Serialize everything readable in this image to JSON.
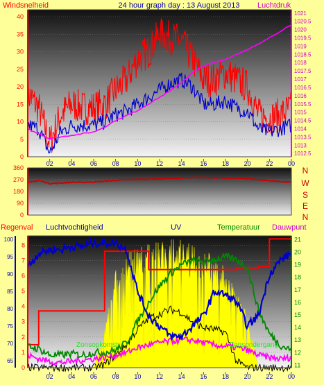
{
  "title": "24 hour graph day : 13 August 2013",
  "top": {
    "left_label": "Windsnelheid",
    "right_label": "Luchtdruk",
    "y_left_ticks": [
      "0",
      "5",
      "10",
      "15",
      "20",
      "25",
      "30",
      "35",
      "40"
    ],
    "y_right_ticks": [
      "1012.5",
      "1013",
      "1013.5",
      "1014",
      "1014.5",
      "1015",
      "1015.5",
      "1016",
      "1016.5",
      "1017",
      "1017.5",
      "1018",
      "1018.5",
      "1019",
      "1019.5",
      "1020",
      "1020.5",
      "1021"
    ]
  },
  "mid": {
    "y_ticks": [
      "0",
      "90",
      "180",
      "270",
      "360"
    ],
    "compass": [
      "N",
      "W",
      "S",
      "E",
      "N"
    ]
  },
  "bottom": {
    "labels": [
      "Regenval",
      "Luchtvochtigheid",
      "UV",
      "Temperatuur",
      "Dauwpunt"
    ],
    "y_left_ticks": [
      "65",
      "70",
      "75",
      "80",
      "85",
      "90",
      "95",
      "100"
    ],
    "y_uv_ticks": [
      "0",
      "1",
      "2",
      "3",
      "4",
      "5",
      "6",
      "7",
      "8"
    ],
    "y_right_ticks": [
      "11",
      "12",
      "13",
      "14",
      "15",
      "16",
      "17",
      "18",
      "19",
      "20",
      "21"
    ],
    "sunrise_label": "Zonsopkomst",
    "sunset_label": "Zonsondergang"
  },
  "x_ticks": [
    "02",
    "04",
    "06",
    "08",
    "10",
    "12",
    "14",
    "16",
    "18",
    "20",
    "22",
    "00"
  ],
  "colors": {
    "background": "#ffff99",
    "wind_gust": "#ff0000",
    "wind_avg": "#0000cc",
    "pressure": "#ff00ff",
    "direction": "#cc0000",
    "humidity": "#0000cc",
    "uv": "#ffff00",
    "temperature": "#008800",
    "dewpoint": "#ff00ff",
    "rain": "#ff0000",
    "solar": "#000000",
    "label_red": "#ff0000",
    "label_blue": "#0000aa",
    "label_green": "#008800",
    "label_purple": "#cc00cc"
  },
  "chart_data": [
    {
      "type": "line",
      "title": "24 hour graph day : 13 August 2013",
      "xlabel": "",
      "ylabel": "Windsnelheid",
      "ylim": [
        0,
        42
      ],
      "y2label": "Luchtdruk",
      "y2lim": [
        1012.3,
        1021.2
      ],
      "x_hours": [
        0,
        1,
        2,
        3,
        4,
        5,
        6,
        7,
        8,
        9,
        10,
        11,
        12,
        13,
        14,
        15,
        16,
        17,
        18,
        19,
        20,
        21,
        22,
        23,
        24
      ],
      "series": [
        {
          "name": "Windsnelheid",
          "role": "gust",
          "values": [
            18,
            14,
            4,
            12,
            15,
            14,
            14,
            15,
            19,
            22,
            28,
            30,
            35,
            34,
            33,
            28,
            22,
            22,
            24,
            22,
            20,
            12,
            11,
            12,
            14
          ]
        },
        {
          "name": "",
          "role": "average",
          "values": [
            9,
            8,
            1,
            7,
            9,
            9,
            9,
            10,
            12,
            13,
            15,
            17,
            19,
            21,
            22,
            20,
            15,
            15,
            16,
            14,
            13,
            8,
            7,
            8,
            9
          ]
        },
        {
          "name": "Luchtdruk",
          "axis": "right",
          "values": [
            1014.0,
            1013.7,
            1013.4,
            1013.5,
            1013.6,
            1013.7,
            1013.8,
            1014.1,
            1014.5,
            1014.8,
            1015.1,
            1015.5,
            1015.9,
            1016.3,
            1016.8,
            1017.4,
            1017.8,
            1018.0,
            1018.2,
            1018.5,
            1018.8,
            1019.1,
            1019.5,
            1019.9,
            1020.3
          ]
        }
      ]
    },
    {
      "type": "line",
      "title": "",
      "ylabel": "",
      "ylim": [
        0,
        360
      ],
      "x_hours": [
        0,
        1,
        2,
        3,
        4,
        5,
        6,
        7,
        8,
        9,
        10,
        11,
        12,
        13,
        14,
        15,
        16,
        17,
        18,
        19,
        20,
        21,
        22,
        23,
        24
      ],
      "series": [
        {
          "name": "",
          "values": [
            245,
            265,
            240,
            245,
            250,
            250,
            252,
            258,
            265,
            270,
            272,
            275,
            275,
            278,
            282,
            285,
            288,
            285,
            282,
            280,
            278,
            270,
            262,
            255,
            250
          ]
        }
      ]
    },
    {
      "type": "line",
      "title": "",
      "x_hours": [
        0,
        1,
        2,
        3,
        4,
        5,
        6,
        7,
        8,
        9,
        10,
        11,
        12,
        13,
        14,
        15,
        16,
        17,
        18,
        19,
        20,
        21,
        22,
        23,
        24
      ],
      "series": [
        {
          "name": "Luchtvochtigheid",
          "axis": "left",
          "ylim": [
            63,
            101
          ],
          "values": [
            92,
            96,
            97,
            97,
            98,
            98,
            99,
            99,
            99,
            97,
            85,
            78,
            75,
            72,
            72,
            75,
            78,
            85,
            84,
            82,
            75,
            78,
            90,
            94,
            96
          ]
        },
        {
          "name": "UV",
          "axis": "uv",
          "ylim": [
            0,
            8.6
          ],
          "values": [
            0,
            0,
            0,
            0,
            0,
            0,
            0,
            2.5,
            6.5,
            7.5,
            7.8,
            8.2,
            8.4,
            8.5,
            8.4,
            8.2,
            7.8,
            7.2,
            6.5,
            5.5,
            3.5,
            0,
            0,
            0,
            0
          ]
        },
        {
          "name": "Temperatuur",
          "axis": "right",
          "ylim": [
            10.8,
            21.3
          ],
          "values": [
            12.5,
            12.3,
            11.8,
            11.8,
            11.9,
            11.8,
            12.0,
            12.0,
            12.2,
            12.8,
            14.5,
            16.0,
            17.3,
            18.3,
            19.0,
            19.3,
            19.2,
            19.4,
            19.6,
            19.4,
            18.8,
            15.4,
            13.5,
            12.6,
            12.2
          ]
        },
        {
          "name": "Dauwpunt",
          "axis": "right",
          "ylim": [
            10.8,
            21.3
          ],
          "values": [
            11.8,
            11.5,
            11.3,
            11.2,
            11.3,
            11.4,
            11.5,
            11.6,
            11.8,
            12.0,
            12.4,
            12.6,
            12.8,
            12.9,
            13.0,
            13.0,
            12.8,
            12.6,
            12.5,
            12.4,
            12.2,
            11.8,
            11.6,
            11.5,
            11.6
          ]
        },
        {
          "name": "Regenval",
          "axis": "uv",
          "values": [
            1.5,
            3.7,
            3.7,
            3.7,
            3.7,
            3.7,
            3.7,
            7.6,
            7.6,
            7.6,
            7.6,
            6.4,
            6.4,
            6.4,
            6.4,
            6.4,
            6.4,
            6.4,
            6.4,
            6.5,
            6.5,
            6.6,
            8.4,
            8.4,
            8.4
          ]
        },
        {
          "name": "",
          "role": "solar",
          "axis": "uv",
          "values": [
            0,
            0,
            0,
            0,
            0,
            0,
            0,
            0.2,
            0.8,
            1.5,
            2.5,
            3.2,
            3.5,
            3.8,
            3.6,
            3.0,
            2.6,
            2.5,
            2.3,
            0.4,
            0,
            0,
            0,
            0,
            0
          ]
        }
      ]
    }
  ]
}
